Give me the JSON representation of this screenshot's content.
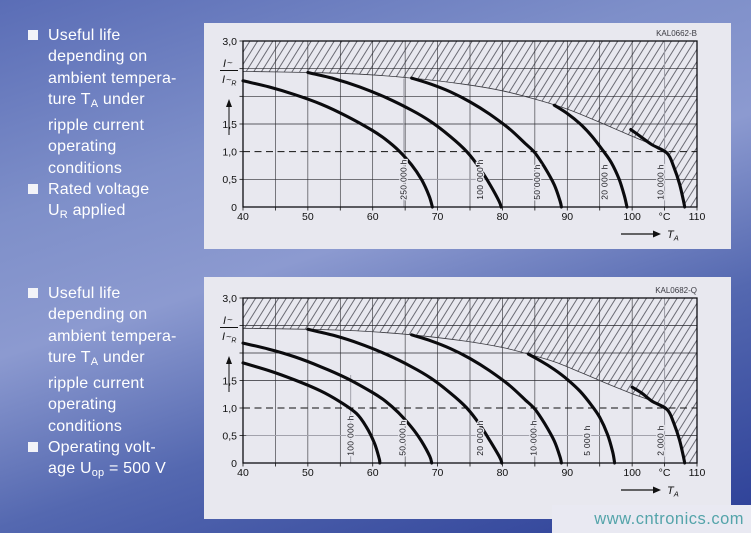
{
  "watermark": "www.cntronics.com",
  "notes": [
    {
      "bullets": [
        {
          "lines": [
            [
              {
                "t": "Useful life"
              }
            ],
            [
              {
                "t": "depending on"
              }
            ],
            [
              {
                "t": "ambient tempera-"
              }
            ],
            [
              {
                "t": "ture T"
              },
              {
                "t": "A",
                "sub": true
              },
              {
                "t": " under"
              }
            ],
            [
              {
                "t": "ripple current"
              }
            ],
            [
              {
                "t": "operating"
              }
            ],
            [
              {
                "t": "conditions"
              }
            ]
          ]
        },
        {
          "lines": [
            [
              {
                "t": "Rated voltage"
              }
            ],
            [
              {
                "t": "U"
              },
              {
                "t": "R",
                "sub": true
              },
              {
                "t": " applied"
              }
            ]
          ]
        }
      ]
    },
    {
      "bullets": [
        {
          "lines": [
            [
              {
                "t": "Useful life"
              }
            ],
            [
              {
                "t": "depending on"
              }
            ],
            [
              {
                "t": "ambient tempera-"
              }
            ],
            [
              {
                "t": "ture T"
              },
              {
                "t": "A",
                "sub": true
              },
              {
                "t": " under"
              }
            ],
            [
              {
                "t": "ripple current"
              }
            ],
            [
              {
                "t": "operating"
              }
            ],
            [
              {
                "t": "conditions"
              }
            ]
          ]
        },
        {
          "lines": [
            [
              {
                "t": "Operating volt-"
              }
            ],
            [
              {
                "t": "age U"
              },
              {
                "t": "op",
                "sub": true
              },
              {
                "t": " = 500 V"
              }
            ]
          ]
        }
      ]
    }
  ],
  "chart_data": [
    {
      "type": "line",
      "code": "KAL0662-B",
      "title": "Useful life vs ambient temperature, rated voltage UR applied",
      "xlabel": {
        "name": "T",
        "sub": "A"
      },
      "x_unit": "°C",
      "ylabel": {
        "num": "I",
        "num_mark": "∼",
        "den": "I",
        "den_mark": "∼",
        "den_sub": "R"
      },
      "xlim": [
        40,
        110
      ],
      "ylim": [
        0,
        3
      ],
      "x_grid_step": 5,
      "y_grid": [
        0.5,
        1.5,
        2,
        2.5
      ],
      "dashed_y": 1,
      "x_ticks": [
        {
          "v": 40,
          "l": "40"
        },
        {
          "v": 50,
          "l": "50"
        },
        {
          "v": 60,
          "l": "60"
        },
        {
          "v": 70,
          "l": "70"
        },
        {
          "v": 80,
          "l": "80"
        },
        {
          "v": 90,
          "l": "90"
        },
        {
          "v": 100,
          "l": "100"
        },
        {
          "v": 105,
          "l": "°C"
        },
        {
          "v": 110,
          "l": "110"
        }
      ],
      "y_ticks": [
        {
          "v": 0,
          "l": "0"
        },
        {
          "v": 0.5,
          "l": "0,5"
        },
        {
          "v": 1,
          "l": "1,0"
        },
        {
          "v": 1.5,
          "l": "1,5"
        },
        {
          "v": 3,
          "l": "3,0"
        }
      ],
      "envelope": [
        [
          40,
          2.45
        ],
        [
          50,
          2.43
        ],
        [
          58,
          2.4
        ],
        [
          66,
          2.33
        ],
        [
          74,
          2.22
        ],
        [
          80,
          2.1
        ],
        [
          85,
          1.95
        ],
        [
          90,
          1.77
        ],
        [
          95,
          1.53
        ],
        [
          100,
          1.28
        ],
        [
          103,
          1.13
        ],
        [
          105.4,
          1.0
        ]
      ],
      "tail": [
        [
          106.4,
          0.73
        ],
        [
          107.3,
          0.42
        ],
        [
          107.9,
          0.12
        ],
        [
          108.1,
          0
        ]
      ],
      "series": [
        {
          "name": "250 000 h",
          "label_x": 64.6,
          "points": [
            [
              40,
              2.28
            ],
            [
              44,
              2.17
            ],
            [
              48,
              2.03
            ],
            [
              52,
              1.86
            ],
            [
              56,
              1.64
            ],
            [
              60,
              1.38
            ],
            [
              62,
              1.22
            ],
            [
              64,
              1.02
            ],
            [
              66,
              0.76
            ],
            [
              67.5,
              0.5
            ],
            [
              68.7,
              0.2
            ],
            [
              69.2,
              0
            ]
          ]
        },
        {
          "name": "100 000 h",
          "label_x": 76.4,
          "points": [
            [
              50,
              2.43
            ],
            [
              54,
              2.32
            ],
            [
              58,
              2.17
            ],
            [
              62,
              1.98
            ],
            [
              66,
              1.75
            ],
            [
              69,
              1.54
            ],
            [
              72,
              1.27
            ],
            [
              74.5,
              1.0
            ],
            [
              76.5,
              0.7
            ],
            [
              78.2,
              0.38
            ],
            [
              79.5,
              0.1
            ],
            [
              79.8,
              0
            ]
          ]
        },
        {
          "name": "50 000 h",
          "label_x": 85.2,
          "points": [
            [
              66,
              2.33
            ],
            [
              69,
              2.22
            ],
            [
              72,
              2.08
            ],
            [
              75,
              1.9
            ],
            [
              78,
              1.68
            ],
            [
              81,
              1.42
            ],
            [
              83.5,
              1.15
            ],
            [
              85,
              0.98
            ],
            [
              86.5,
              0.72
            ],
            [
              88,
              0.4
            ],
            [
              88.9,
              0.1
            ],
            [
              89.1,
              0
            ]
          ]
        },
        {
          "name": "20 000 h",
          "label_x": 95.6,
          "points": [
            [
              88,
              1.84
            ],
            [
              90,
              1.69
            ],
            [
              92,
              1.5
            ],
            [
              93.8,
              1.28
            ],
            [
              95.5,
              1.02
            ],
            [
              96.8,
              0.8
            ],
            [
              98,
              0.5
            ],
            [
              98.8,
              0.2
            ],
            [
              99.2,
              0
            ]
          ]
        },
        {
          "name": "10 000 h",
          "label_x": 104.2,
          "points": [
            [
              99.8,
              1.4
            ],
            [
              101,
              1.3
            ],
            [
              103,
              1.13
            ],
            [
              105.4,
              0.97
            ],
            [
              106.4,
              0.73
            ],
            [
              107.3,
              0.42
            ],
            [
              107.9,
              0.12
            ],
            [
              108.1,
              0
            ]
          ]
        }
      ],
      "gray_vlines": [
        {
          "x": 105,
          "y0": 0,
          "y1": 3
        },
        {
          "x": 64.8,
          "y0": 0,
          "y1": 2.32
        }
      ],
      "gray_hlines": [
        {
          "y": 0.5,
          "x0": 68,
          "x1": 78
        }
      ]
    },
    {
      "type": "line",
      "code": "KAL0682-Q",
      "title": "Useful life vs ambient temperature, operating voltage 500 V",
      "xlabel": {
        "name": "T",
        "sub": "A"
      },
      "x_unit": "°C",
      "ylabel": {
        "num": "I",
        "num_mark": "∼",
        "den": "I",
        "den_mark": "∼",
        "den_sub": "R"
      },
      "xlim": [
        40,
        110
      ],
      "ylim": [
        0,
        3
      ],
      "x_grid_step": 5,
      "y_grid": [
        0.5,
        1.5,
        2,
        2.5
      ],
      "dashed_y": 1,
      "x_ticks": [
        {
          "v": 40,
          "l": "40"
        },
        {
          "v": 50,
          "l": "50"
        },
        {
          "v": 60,
          "l": "60"
        },
        {
          "v": 70,
          "l": "70"
        },
        {
          "v": 80,
          "l": "80"
        },
        {
          "v": 90,
          "l": "90"
        },
        {
          "v": 100,
          "l": "100"
        },
        {
          "v": 105,
          "l": "°C"
        },
        {
          "v": 110,
          "l": "110"
        }
      ],
      "y_ticks": [
        {
          "v": 0,
          "l": "0"
        },
        {
          "v": 0.5,
          "l": "0,5"
        },
        {
          "v": 1,
          "l": "1,0"
        },
        {
          "v": 1.5,
          "l": "1,5"
        },
        {
          "v": 3,
          "l": "3,0"
        }
      ],
      "envelope": [
        [
          40,
          2.45
        ],
        [
          50,
          2.43
        ],
        [
          58,
          2.4
        ],
        [
          66,
          2.33
        ],
        [
          74,
          2.22
        ],
        [
          80,
          2.1
        ],
        [
          84,
          1.98
        ],
        [
          88,
          1.84
        ],
        [
          92,
          1.65
        ],
        [
          96,
          1.45
        ],
        [
          100,
          1.26
        ],
        [
          103,
          1.13
        ],
        [
          105.4,
          1.0
        ]
      ],
      "tail": [
        [
          106.4,
          0.73
        ],
        [
          107.3,
          0.42
        ],
        [
          107.9,
          0.12
        ],
        [
          108.1,
          0
        ]
      ],
      "series": [
        {
          "name": "100 000 h",
          "label_x": 56.4,
          "points": [
            [
              40,
              1.82
            ],
            [
              44,
              1.68
            ],
            [
              48,
              1.51
            ],
            [
              52,
              1.31
            ],
            [
              55,
              1.11
            ],
            [
              57.5,
              0.9
            ],
            [
              59,
              0.66
            ],
            [
              60.3,
              0.35
            ],
            [
              61,
              0.08
            ],
            [
              61.1,
              0
            ]
          ]
        },
        {
          "name": "50 000 h",
          "label_x": 64.4,
          "points": [
            [
              40,
              2.18
            ],
            [
              44,
              2.07
            ],
            [
              48,
              1.93
            ],
            [
              52,
              1.75
            ],
            [
              56,
              1.54
            ],
            [
              60,
              1.28
            ],
            [
              62,
              1.12
            ],
            [
              64,
              0.91
            ],
            [
              66,
              0.65
            ],
            [
              67.5,
              0.4
            ],
            [
              68.8,
              0.12
            ],
            [
              69.1,
              0
            ]
          ]
        },
        {
          "name": "20 000 h",
          "label_x": 76.4,
          "points": [
            [
              50,
              2.43
            ],
            [
              54,
              2.32
            ],
            [
              58,
              2.17
            ],
            [
              62,
              1.98
            ],
            [
              66,
              1.75
            ],
            [
              69,
              1.54
            ],
            [
              72,
              1.27
            ],
            [
              74.5,
              1.0
            ],
            [
              76.5,
              0.7
            ],
            [
              78.2,
              0.38
            ],
            [
              79.6,
              0.1
            ],
            [
              79.9,
              0
            ]
          ]
        },
        {
          "name": "10 000 h",
          "label_x": 84.6,
          "points": [
            [
              66,
              2.33
            ],
            [
              69,
              2.22
            ],
            [
              72,
              2.08
            ],
            [
              75,
              1.9
            ],
            [
              78,
              1.68
            ],
            [
              81,
              1.42
            ],
            [
              83.5,
              1.15
            ],
            [
              85,
              0.98
            ],
            [
              86.5,
              0.72
            ],
            [
              88,
              0.4
            ],
            [
              88.9,
              0.1
            ],
            [
              89.1,
              0
            ]
          ]
        },
        {
          "name": "5 000 h",
          "label_x": 92.9,
          "points": [
            [
              84,
              1.98
            ],
            [
              86,
              1.85
            ],
            [
              88,
              1.7
            ],
            [
              90,
              1.52
            ],
            [
              92,
              1.3
            ],
            [
              93.8,
              1.04
            ],
            [
              95,
              0.83
            ],
            [
              96.2,
              0.52
            ],
            [
              97,
              0.2
            ],
            [
              97.3,
              0
            ]
          ]
        },
        {
          "name": "2 000 h",
          "label_x": 104.2,
          "points": [
            [
              100,
              1.38
            ],
            [
              101.5,
              1.27
            ],
            [
              103,
              1.13
            ],
            [
              105.4,
              0.97
            ],
            [
              106.4,
              0.73
            ],
            [
              107.3,
              0.42
            ],
            [
              107.9,
              0.12
            ],
            [
              108.1,
              0
            ]
          ]
        }
      ],
      "gray_vlines": [
        {
          "x": 105,
          "y0": 0,
          "y1": 3
        },
        {
          "x": 56.6,
          "y0": 0,
          "y1": 1.6
        }
      ],
      "gray_hlines": [
        {
          "y": 0.5,
          "x0": 40.5,
          "x1": 104
        }
      ]
    }
  ]
}
